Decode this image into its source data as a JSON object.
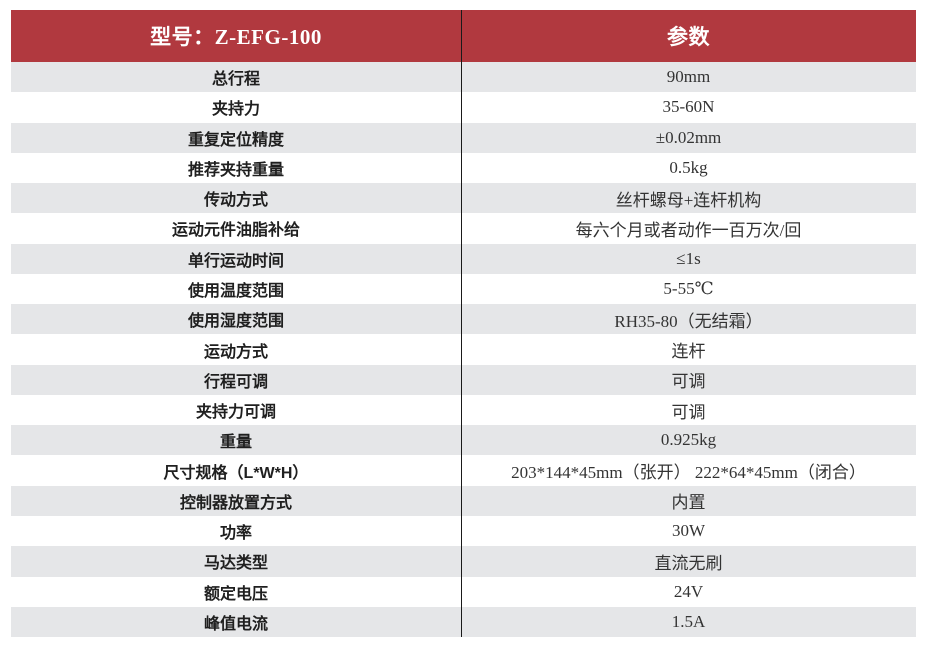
{
  "header": {
    "model_label": "型号：Z-EFG-100",
    "param_label": "参数"
  },
  "colors": {
    "header_bg": "#B1393F",
    "header_text": "#FFFFFF",
    "row_alt_bg": "#E5E6E8",
    "row_bg": "#FFFFFF",
    "divider": "#1A1A1A",
    "label_text": "#1F1F1F",
    "value_text": "#333333"
  },
  "rows": [
    {
      "label": "总行程",
      "value": "90mm"
    },
    {
      "label": "夹持力",
      "value": "35-60N"
    },
    {
      "label": "重复定位精度",
      "value": "±0.02mm"
    },
    {
      "label": "推荐夹持重量",
      "value": "0.5kg"
    },
    {
      "label": "传动方式",
      "value": "丝杆螺母+连杆机构"
    },
    {
      "label": "运动元件油脂补给",
      "value": "每六个月或者动作一百万次/回"
    },
    {
      "label": "单行运动时间",
      "value": "≤1s"
    },
    {
      "label": "使用温度范围",
      "value": "5-55℃"
    },
    {
      "label": "使用湿度范围",
      "value": "RH35-80（无结霜）"
    },
    {
      "label": "运动方式",
      "value": "连杆"
    },
    {
      "label": "行程可调",
      "value": "可调"
    },
    {
      "label": "夹持力可调",
      "value": "可调"
    },
    {
      "label": "重量",
      "value": "0.925kg"
    },
    {
      "label": "尺寸规格（L*W*H）",
      "value": "203*144*45mm（张开） 222*64*45mm（闭合）"
    },
    {
      "label": "控制器放置方式",
      "value": "内置"
    },
    {
      "label": "功率",
      "value": "30W"
    },
    {
      "label": "马达类型",
      "value": "直流无刷"
    },
    {
      "label": "额定电压",
      "value": "24V"
    },
    {
      "label": "峰值电流",
      "value": "1.5A"
    }
  ]
}
